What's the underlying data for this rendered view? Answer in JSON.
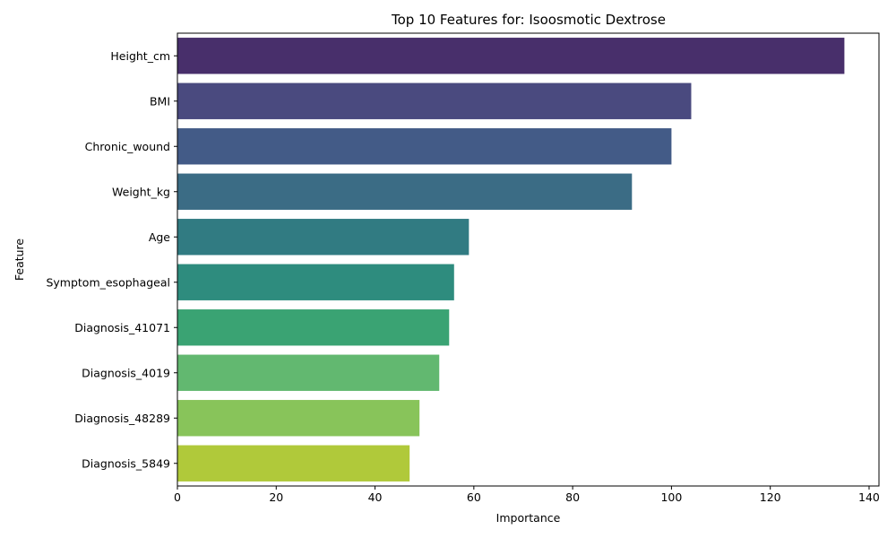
{
  "chart_data": {
    "type": "bar",
    "orientation": "horizontal",
    "title": "Top 10 Features for: Isoosmotic Dextrose",
    "xlabel": "Importance",
    "ylabel": "Feature",
    "xlim": [
      0,
      142
    ],
    "xticks": [
      0,
      20,
      40,
      60,
      80,
      100,
      120,
      140
    ],
    "grid": false,
    "categories": [
      "Height_cm",
      "BMI",
      "Chronic_wound",
      "Weight_kg",
      "Age",
      "Symptom_esophageal",
      "Diagnosis_41071",
      "Diagnosis_4019",
      "Diagnosis_48289",
      "Diagnosis_5849"
    ],
    "values": [
      135,
      104,
      100,
      92,
      59,
      56,
      55,
      53,
      49,
      47
    ],
    "colors": [
      "#482f6b",
      "#4a4a7f",
      "#435b87",
      "#3b6c85",
      "#317b82",
      "#2e8c7e",
      "#3aa373",
      "#62b870",
      "#88c45a",
      "#b0c93a"
    ]
  }
}
